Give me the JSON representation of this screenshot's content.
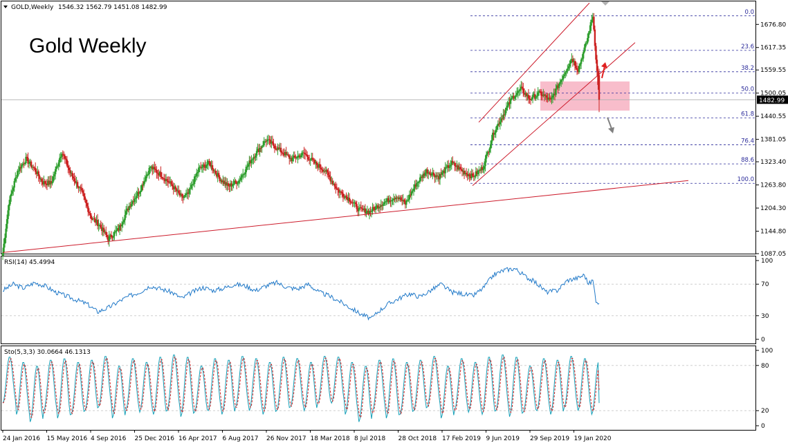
{
  "header": {
    "symbol": "GOLD,Weekly",
    "ohlc": "1546.32 1562.79 1451.08 1482.99",
    "overlay_title": "Gold Weekly"
  },
  "colors": {
    "up": "#2e9e2e",
    "down": "#cc2222",
    "trend": "#cc1a2a",
    "fib": "#2a2a9a",
    "zone": "#f7b2c2",
    "rsi": "#1f78c8",
    "sto_main": "#16a0b8",
    "sto_signal": "#d42020"
  },
  "chart_data": [
    {
      "type": "candlestick",
      "title": "GOLD,Weekly",
      "ylim": [
        1087.05,
        1736.0
      ],
      "price_ticks": [
        "1676.80",
        "1617.35",
        "1559.55",
        "1500.05",
        "1440.55",
        "1381.05",
        "1323.40",
        "1263.80",
        "1204.30",
        "1144.80",
        "1087.05"
      ],
      "current_price": "1482.99",
      "date_ticks": [
        "24 Jan 2016",
        "15 May 2016",
        "4 Sep 2016",
        "25 Dec 2016",
        "16 Apr 2017",
        "6 Aug 2017",
        "26 Nov 2017",
        "18 Mar 2018",
        "8 Jul 2018",
        "28 Oct 2018",
        "17 Feb 2019",
        "9 Jun 2019",
        "29 Sep 2019",
        "19 Jan 2020"
      ],
      "fibonacci": {
        "levels": [
          {
            "label": "0.0",
            "price": 1699
          },
          {
            "label": "23.6",
            "price": 1610
          },
          {
            "label": "38.2",
            "price": 1555
          },
          {
            "label": "50.0",
            "price": 1500
          },
          {
            "label": "61.8",
            "price": 1436
          },
          {
            "label": "76.4",
            "price": 1367
          },
          {
            "label": "88.6",
            "price": 1318
          },
          {
            "label": "100.0",
            "price": 1268
          }
        ]
      },
      "support_zone": {
        "from": 1455,
        "to": 1530
      },
      "anchor_path": [
        [
          0,
          1090
        ],
        [
          6,
          1220
        ],
        [
          14,
          1300
        ],
        [
          22,
          1330
        ],
        [
          30,
          1305
        ],
        [
          38,
          1270
        ],
        [
          46,
          1268
        ],
        [
          56,
          1350
        ],
        [
          64,
          1295
        ],
        [
          74,
          1250
        ],
        [
          84,
          1180
        ],
        [
          92,
          1160
        ],
        [
          100,
          1125
        ],
        [
          110,
          1150
        ],
        [
          120,
          1210
        ],
        [
          130,
          1250
        ],
        [
          140,
          1310
        ],
        [
          150,
          1290
        ],
        [
          160,
          1265
        ],
        [
          170,
          1230
        ],
        [
          176,
          1240
        ],
        [
          186,
          1305
        ],
        [
          196,
          1320
        ],
        [
          206,
          1280
        ],
        [
          214,
          1260
        ],
        [
          224,
          1275
        ],
        [
          236,
          1330
        ],
        [
          250,
          1380
        ],
        [
          262,
          1355
        ],
        [
          274,
          1330
        ],
        [
          286,
          1345
        ],
        [
          296,
          1320
        ],
        [
          306,
          1300
        ],
        [
          318,
          1250
        ],
        [
          330,
          1225
        ],
        [
          338,
          1200
        ],
        [
          348,
          1195
        ],
        [
          356,
          1210
        ],
        [
          366,
          1225
        ],
        [
          374,
          1235
        ],
        [
          382,
          1215
        ],
        [
          392,
          1265
        ],
        [
          402,
          1300
        ],
        [
          414,
          1285
        ],
        [
          426,
          1320
        ],
        [
          436,
          1300
        ],
        [
          446,
          1285
        ],
        [
          456,
          1310
        ],
        [
          466,
          1400
        ],
        [
          476,
          1450
        ],
        [
          484,
          1490
        ],
        [
          492,
          1510
        ],
        [
          500,
          1485
        ],
        [
          510,
          1500
        ],
        [
          520,
          1480
        ],
        [
          530,
          1535
        ],
        [
          540,
          1590
        ],
        [
          546,
          1560
        ],
        [
          554,
          1630
        ],
        [
          560,
          1700
        ],
        [
          564,
          1555
        ],
        [
          566,
          1483
        ]
      ]
    },
    {
      "type": "line",
      "title": "RSI(14) 45.4994",
      "ylim": [
        0,
        100
      ],
      "levels": [
        "100",
        "70",
        "30",
        "0"
      ],
      "anchors": [
        [
          0,
          62
        ],
        [
          10,
          70
        ],
        [
          20,
          65
        ],
        [
          30,
          72
        ],
        [
          40,
          68
        ],
        [
          50,
          60
        ],
        [
          60,
          55
        ],
        [
          70,
          50
        ],
        [
          80,
          45
        ],
        [
          90,
          35
        ],
        [
          100,
          40
        ],
        [
          110,
          48
        ],
        [
          120,
          55
        ],
        [
          130,
          60
        ],
        [
          140,
          68
        ],
        [
          150,
          64
        ],
        [
          160,
          60
        ],
        [
          170,
          52
        ],
        [
          180,
          60
        ],
        [
          190,
          66
        ],
        [
          200,
          62
        ],
        [
          210,
          65
        ],
        [
          220,
          70
        ],
        [
          230,
          68
        ],
        [
          240,
          62
        ],
        [
          250,
          68
        ],
        [
          260,
          72
        ],
        [
          270,
          66
        ],
        [
          280,
          64
        ],
        [
          290,
          70
        ],
        [
          300,
          60
        ],
        [
          310,
          55
        ],
        [
          320,
          48
        ],
        [
          330,
          40
        ],
        [
          340,
          32
        ],
        [
          350,
          26
        ],
        [
          356,
          35
        ],
        [
          366,
          45
        ],
        [
          376,
          52
        ],
        [
          386,
          58
        ],
        [
          396,
          54
        ],
        [
          406,
          62
        ],
        [
          416,
          70
        ],
        [
          426,
          60
        ],
        [
          436,
          58
        ],
        [
          446,
          55
        ],
        [
          456,
          65
        ],
        [
          466,
          82
        ],
        [
          476,
          88
        ],
        [
          486,
          90
        ],
        [
          496,
          80
        ],
        [
          506,
          72
        ],
        [
          516,
          60
        ],
        [
          526,
          62
        ],
        [
          536,
          75
        ],
        [
          546,
          78
        ],
        [
          552,
          82
        ],
        [
          556,
          70
        ],
        [
          560,
          75
        ],
        [
          563,
          50
        ],
        [
          566,
          45.5
        ]
      ]
    },
    {
      "type": "line",
      "title": "Sto(5,3,3) 30.0664 46.1313",
      "ylim": [
        0,
        100
      ],
      "levels": [
        "100",
        "80",
        "20",
        "0"
      ],
      "period": 13,
      "peaks": [
        92,
        85,
        80,
        88,
        90,
        85,
        88,
        93,
        80,
        90,
        85,
        92,
        95,
        92,
        80,
        90,
        88,
        93,
        90,
        85,
        92,
        90,
        85,
        93
      ],
      "troughs": [
        30,
        15,
        5,
        20,
        10,
        15,
        20,
        25,
        10,
        22,
        18,
        15,
        20,
        12,
        18,
        20,
        15,
        25,
        20,
        15,
        20,
        25,
        20,
        30
      ],
      "main_last": 30.0664,
      "signal_last": 46.1313
    }
  ]
}
